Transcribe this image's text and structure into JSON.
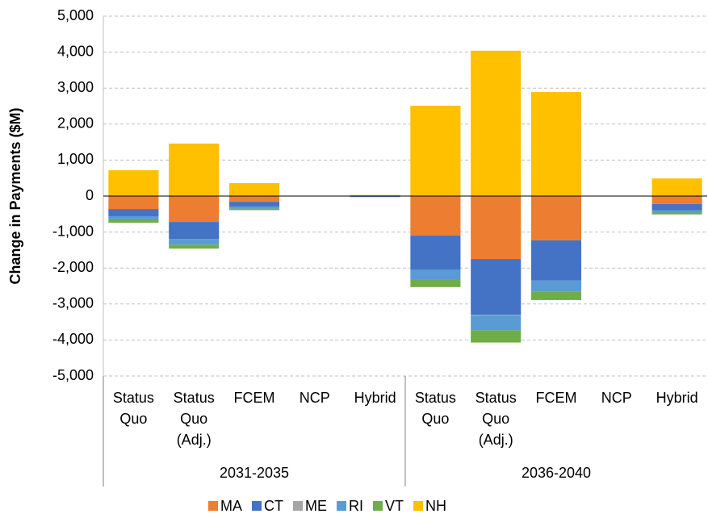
{
  "chart_data": {
    "type": "stacked-bar",
    "y_label": "Change in Payments ($M)",
    "categories": [
      [
        "Status",
        "Quo"
      ],
      [
        "Status",
        "Quo",
        "(Adj.)"
      ],
      [
        "FCEM"
      ],
      [
        "NCP"
      ],
      [
        "Hybrid"
      ],
      [
        "Status",
        "Quo"
      ],
      [
        "Status",
        "Quo",
        "(Adj.)"
      ],
      [
        "FCEM"
      ],
      [
        "NCP"
      ],
      [
        "Hybrid"
      ]
    ],
    "groups": [
      "2031-2035",
      "2036-2040"
    ],
    "series": [
      {
        "name": "MA",
        "color": "#ED7D31",
        "values": [
          -360,
          -720,
          -160,
          0,
          -10,
          -1100,
          -1750,
          -1230,
          0,
          -220
        ]
      },
      {
        "name": "CT",
        "color": "#4472C4",
        "values": [
          -200,
          -470,
          -130,
          0,
          -10,
          -940,
          -1550,
          -1120,
          0,
          -180
        ]
      },
      {
        "name": "ME",
        "color": "#A5A5A5",
        "values": [
          0,
          0,
          0,
          0,
          0,
          0,
          -10,
          0,
          0,
          0
        ]
      },
      {
        "name": "RI",
        "color": "#5B9BD5",
        "values": [
          -90,
          -160,
          -60,
          0,
          -5,
          -270,
          -420,
          -310,
          0,
          -60
        ]
      },
      {
        "name": "VT",
        "color": "#70AD47",
        "values": [
          -90,
          -110,
          -40,
          0,
          -5,
          -220,
          -340,
          -230,
          0,
          -50
        ]
      },
      {
        "name": "NH",
        "color": "#FFC000",
        "values": [
          720,
          1460,
          360,
          0,
          30,
          2510,
          4040,
          2890,
          0,
          490
        ]
      }
    ],
    "ylim": [
      -5000,
      5000
    ],
    "yticks": [
      {
        "value": 5000,
        "label": "5,000"
      },
      {
        "value": 4000,
        "label": "4,000"
      },
      {
        "value": 3000,
        "label": "3,000"
      },
      {
        "value": 2000,
        "label": "2,000"
      },
      {
        "value": 1000,
        "label": "1,000"
      },
      0,
      {
        "value": -1000,
        "label": "-1,000"
      },
      {
        "value": -2000,
        "label": "-2,000"
      },
      {
        "value": -3000,
        "label": "-3,000"
      },
      {
        "value": -4000,
        "label": "-4,000"
      },
      {
        "value": -5000,
        "label": "-5,000"
      }
    ],
    "grid": true
  }
}
